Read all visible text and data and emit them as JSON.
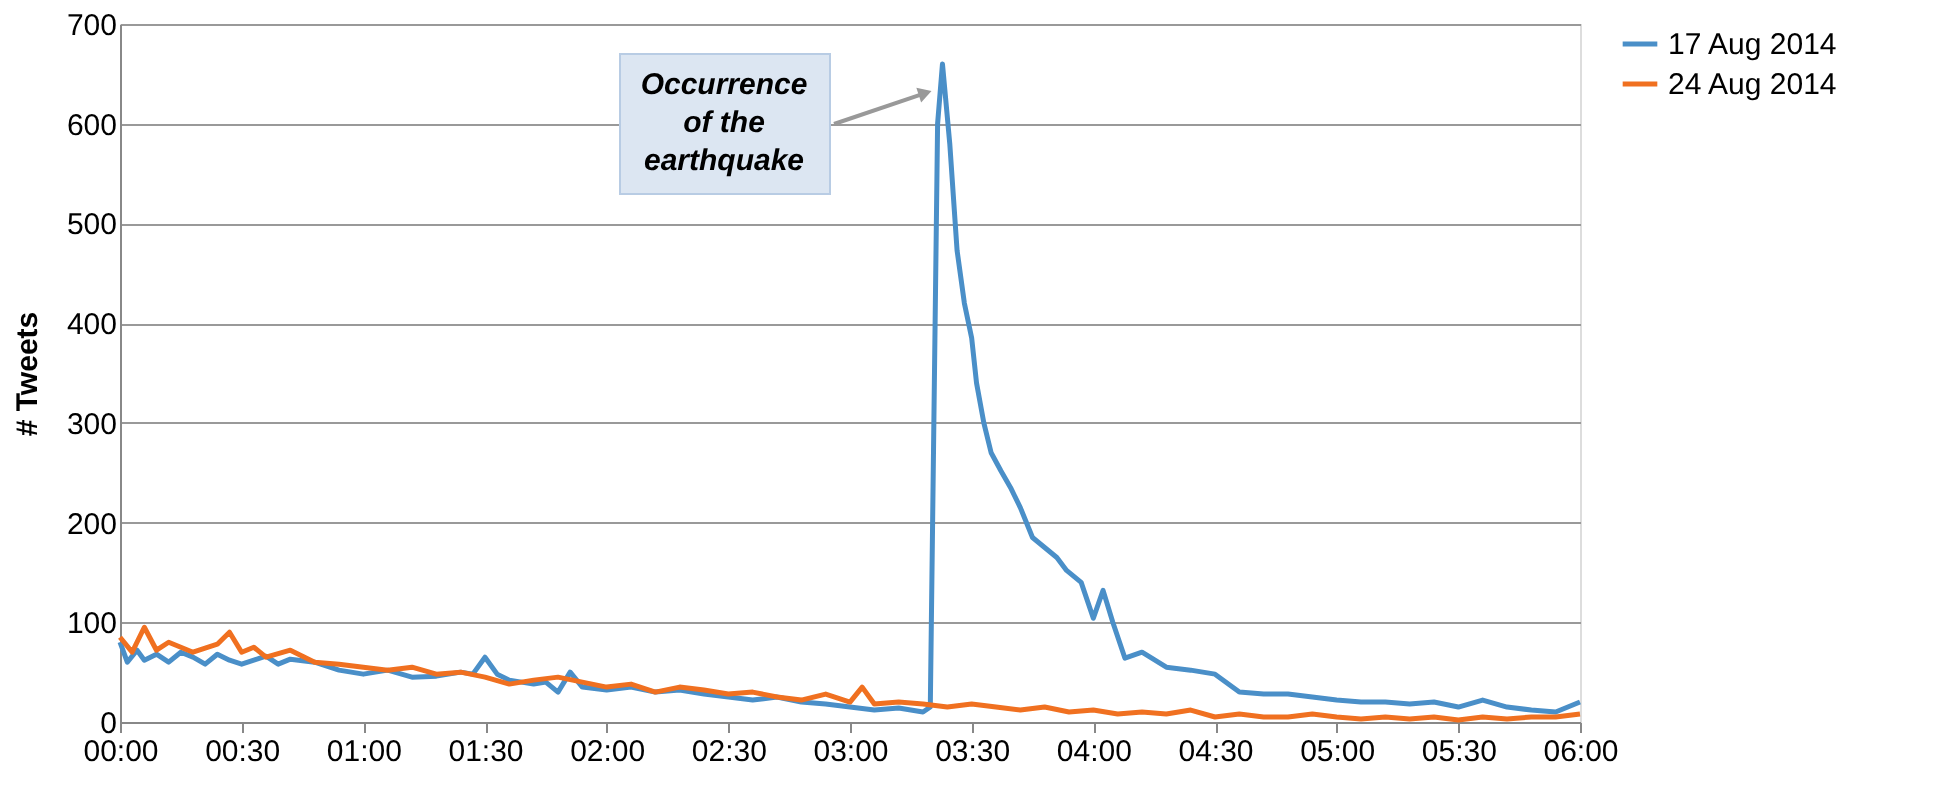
{
  "chart_data": {
    "type": "line",
    "ylabel": "# Tweets",
    "xlim": [
      0,
      6
    ],
    "ylim": [
      0,
      700
    ],
    "xticks": [
      {
        "value": 0,
        "label": "00:00"
      },
      {
        "value": 0.5,
        "label": "00:30"
      },
      {
        "value": 1,
        "label": "01:00"
      },
      {
        "value": 1.5,
        "label": "01:30"
      },
      {
        "value": 2,
        "label": "02:00"
      },
      {
        "value": 2.5,
        "label": "02:30"
      },
      {
        "value": 3,
        "label": "03:00"
      },
      {
        "value": 3.5,
        "label": "03:30"
      },
      {
        "value": 4,
        "label": "04:00"
      },
      {
        "value": 4.5,
        "label": "04:30"
      },
      {
        "value": 5,
        "label": "05:00"
      },
      {
        "value": 5.5,
        "label": "05:30"
      },
      {
        "value": 6,
        "label": "06:00"
      }
    ],
    "yticks": [
      0,
      100,
      200,
      300,
      400,
      500,
      600,
      700
    ],
    "grid": "y",
    "legend": "right",
    "marker": "none",
    "line_style": "solid",
    "annotations": [
      {
        "text": "Occurrence of the earthquake",
        "x": 3.3,
        "y": 630
      }
    ],
    "series": [
      {
        "name": "17 Aug 2014",
        "color": "#4a8fc8",
        "x": [
          0,
          0.03,
          0.07,
          0.1,
          0.15,
          0.2,
          0.25,
          0.3,
          0.35,
          0.4,
          0.45,
          0.5,
          0.55,
          0.6,
          0.65,
          0.7,
          0.8,
          0.9,
          1,
          1.1,
          1.2,
          1.3,
          1.4,
          1.45,
          1.5,
          1.55,
          1.6,
          1.7,
          1.75,
          1.8,
          1.85,
          1.9,
          2,
          2.1,
          2.2,
          2.3,
          2.4,
          2.5,
          2.6,
          2.7,
          2.8,
          2.9,
          3,
          3.1,
          3.2,
          3.3,
          3.33,
          3.36,
          3.38,
          3.41,
          3.44,
          3.47,
          3.5,
          3.52,
          3.55,
          3.58,
          3.62,
          3.66,
          3.7,
          3.75,
          3.8,
          3.85,
          3.89,
          3.95,
          4,
          4.04,
          4.08,
          4.13,
          4.2,
          4.3,
          4.4,
          4.5,
          4.6,
          4.7,
          4.8,
          4.9,
          5,
          5.1,
          5.2,
          5.3,
          5.4,
          5.5,
          5.6,
          5.7,
          5.8,
          5.9,
          6
        ],
        "values": [
          80,
          60,
          72,
          62,
          68,
          60,
          70,
          65,
          58,
          68,
          62,
          58,
          62,
          66,
          58,
          63,
          60,
          52,
          48,
          52,
          45,
          46,
          50,
          48,
          65,
          48,
          42,
          38,
          40,
          30,
          50,
          35,
          32,
          35,
          30,
          32,
          28,
          25,
          22,
          25,
          20,
          18,
          15,
          12,
          14,
          10,
          15,
          600,
          660,
          580,
          473,
          420,
          385,
          340,
          300,
          270,
          252,
          235,
          215,
          185,
          175,
          165,
          152,
          140,
          104,
          132,
          100,
          64,
          70,
          55,
          52,
          48,
          30,
          28,
          28,
          25,
          22,
          20,
          20,
          18,
          20,
          15,
          22,
          15,
          12,
          10,
          20
        ]
      },
      {
        "name": "24 Aug 2014",
        "color": "#f07020",
        "x": [
          0,
          0.05,
          0.1,
          0.15,
          0.2,
          0.25,
          0.3,
          0.4,
          0.45,
          0.5,
          0.55,
          0.6,
          0.7,
          0.8,
          0.9,
          1,
          1.1,
          1.2,
          1.3,
          1.4,
          1.5,
          1.6,
          1.7,
          1.8,
          1.9,
          2,
          2.1,
          2.2,
          2.3,
          2.4,
          2.5,
          2.6,
          2.7,
          2.8,
          2.9,
          3,
          3.05,
          3.1,
          3.2,
          3.3,
          3.4,
          3.5,
          3.6,
          3.7,
          3.8,
          3.9,
          4,
          4.1,
          4.2,
          4.3,
          4.4,
          4.5,
          4.6,
          4.7,
          4.8,
          4.9,
          5,
          5.1,
          5.2,
          5.3,
          5.4,
          5.5,
          5.6,
          5.7,
          5.8,
          5.9,
          6
        ],
        "values": [
          85,
          70,
          95,
          72,
          80,
          75,
          70,
          78,
          90,
          70,
          75,
          65,
          72,
          60,
          58,
          55,
          52,
          55,
          48,
          50,
          45,
          38,
          42,
          45,
          40,
          35,
          38,
          30,
          35,
          32,
          28,
          30,
          25,
          22,
          28,
          20,
          35,
          18,
          20,
          18,
          15,
          18,
          15,
          12,
          15,
          10,
          12,
          8,
          10,
          8,
          12,
          5,
          8,
          5,
          5,
          8,
          5,
          3,
          5,
          3,
          5,
          2,
          5,
          3,
          5,
          5,
          8
        ]
      }
    ]
  }
}
